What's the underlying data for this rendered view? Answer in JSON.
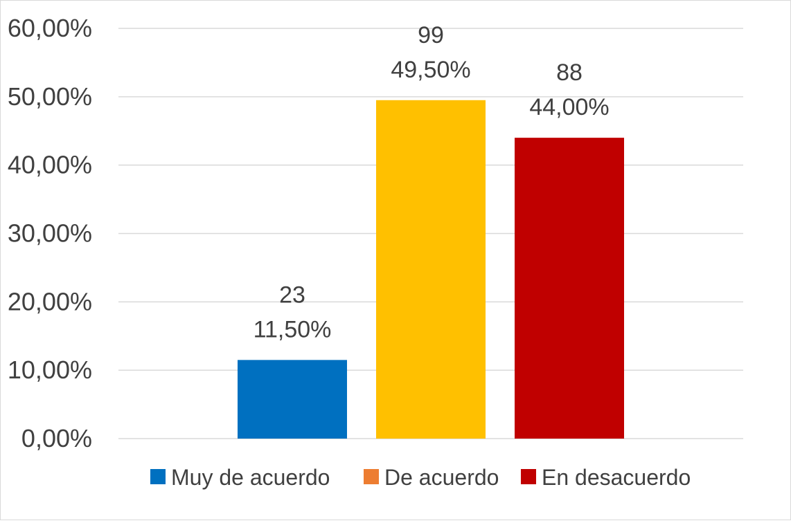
{
  "chart_data": {
    "type": "bar",
    "title": "",
    "xlabel": "",
    "ylabel": "",
    "ylim": [
      0,
      60
    ],
    "y_ticks": [
      "0,00%",
      "10,00%",
      "20,00%",
      "30,00%",
      "40,00%",
      "50,00%",
      "60,00%"
    ],
    "grid": true,
    "legend_position": "bottom",
    "series": [
      {
        "name": "Muy de acuerdo",
        "value": 11.5,
        "count_label": "23",
        "percent_label": "11,50%",
        "color": "#0070c0",
        "legend_color": "#0070c0"
      },
      {
        "name": "De acuerdo",
        "value": 49.5,
        "count_label": "99",
        "percent_label": "49,50%",
        "color": "#ffc000",
        "legend_color": "#ed7d31"
      },
      {
        "name": "En desacuerdo",
        "value": 44.0,
        "count_label": "88",
        "percent_label": "44,00%",
        "color": "#c00000",
        "legend_color": "#c00000"
      }
    ]
  }
}
